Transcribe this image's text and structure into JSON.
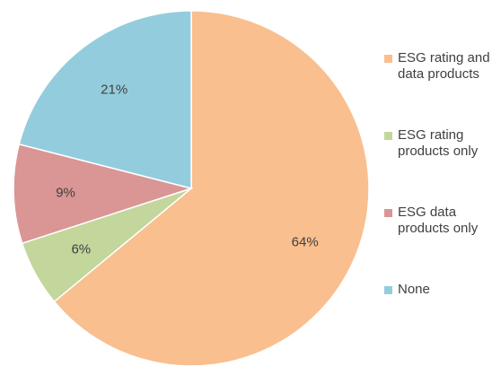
{
  "chart_data": {
    "type": "pie",
    "title": "",
    "categories": [
      "ESG rating and data products",
      "ESG rating products only",
      "ESG data products only",
      "None"
    ],
    "values": [
      64,
      6,
      9,
      21
    ],
    "labels": [
      "64%",
      "6%",
      "9%",
      "21%"
    ],
    "colors": [
      "#F9BF8F",
      "#C3D69B",
      "#D99694",
      "#93CDDD"
    ],
    "start_angle": "12 o'clock",
    "direction": "clockwise",
    "legend_position": "right"
  }
}
